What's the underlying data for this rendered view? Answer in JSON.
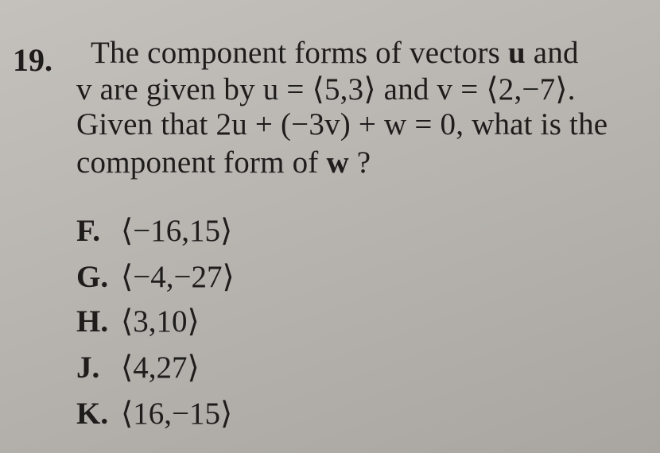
{
  "question": {
    "number": "19.",
    "lines": [
      [
        {
          "text": "The component forms of vectors "
        },
        {
          "text": "u",
          "bold": true
        },
        {
          "text": " and"
        }
      ],
      [
        {
          "text": "v are given by u = ⟨5,3⟩ and v = ⟨2,−7⟩."
        }
      ],
      [
        {
          "text": "Given that 2u + (−3v) + w = 0, what is the"
        }
      ],
      [
        {
          "text": "component form of "
        },
        {
          "text": "w",
          "bold": true
        },
        {
          "text": " ?"
        }
      ]
    ],
    "choices": [
      {
        "letter": "F.",
        "answer": "⟨−16,15⟩"
      },
      {
        "letter": "G.",
        "answer": "⟨−4,−27⟩"
      },
      {
        "letter": "H.",
        "answer": "⟨3,10⟩"
      },
      {
        "letter": "J.",
        "answer": "⟨4,27⟩"
      },
      {
        "letter": "K.",
        "answer": "⟨16,−15⟩"
      }
    ]
  }
}
